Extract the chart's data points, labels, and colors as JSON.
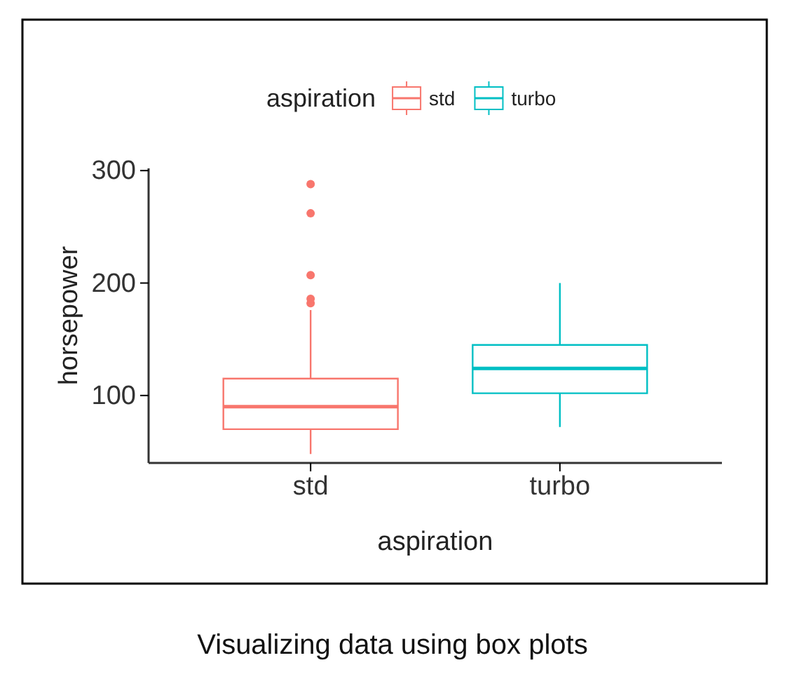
{
  "chart_data": {
    "type": "box",
    "xlabel": "aspiration",
    "ylabel": "horsepower",
    "legend_title": "aspiration",
    "legend": "top",
    "grid": false,
    "categories": [
      "std",
      "turbo"
    ],
    "series": [
      {
        "name": "std",
        "color": "#f8766d",
        "boxes": [
          {
            "low": 48,
            "q1": 70,
            "median": 90,
            "q3": 115,
            "high": 176,
            "outliers": [
              182,
              186,
              207,
              262,
              288
            ]
          },
          null
        ]
      },
      {
        "name": "turbo",
        "color": "#00bfc4",
        "boxes": [
          null,
          {
            "low": 72,
            "q1": 102,
            "median": 124,
            "q3": 145,
            "high": 200
          }
        ]
      }
    ],
    "ylim": [
      40,
      302
    ],
    "yticks": [
      100,
      200,
      300
    ],
    "annotations": [
      "Visualizing data using box plots"
    ]
  }
}
